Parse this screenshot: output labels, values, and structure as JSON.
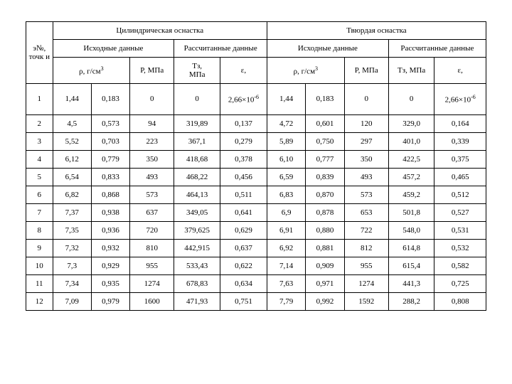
{
  "header": {
    "col0": "э№, точк и",
    "cyl": "Цилиндрическая оснастка",
    "hard": "Твюрдая оснастка",
    "src": "Исходные данные",
    "calc": "Рассчитанные данные",
    "rho": "ρ, г/см",
    "rho_sup": "3",
    "p": "P, МПа",
    "tz_short": "Tз, МПа",
    "tz_long1": "Tз,",
    "tz_long2": "МПа",
    "eps": "ε,"
  },
  "rows": [
    {
      "n": "1",
      "a1": "1,44",
      "a2": "0,183",
      "a3": "0",
      "a4": "0",
      "a5": "2,66×10",
      "a5_sup": "-6",
      "b1": "1,44",
      "b2": "0,183",
      "b3": "0",
      "b4": "0",
      "b5": "2,66×10",
      "b5_sup": "-6"
    },
    {
      "n": "2",
      "a1": "4,5",
      "a2": "0,573",
      "a3": "94",
      "a4": "319,89",
      "a5": "0,137",
      "b1": "4,72",
      "b2": "0,601",
      "b3": "120",
      "b4": "329,0",
      "b5": "0,164"
    },
    {
      "n": "3",
      "a1": "5,52",
      "a2": "0,703",
      "a3": "223",
      "a4": "367,1",
      "a5": "0,279",
      "b1": "5,89",
      "b2": "0,750",
      "b3": "297",
      "b4": "401,0",
      "b5": "0,339"
    },
    {
      "n": "4",
      "a1": "6,12",
      "a2": "0,779",
      "a3": "350",
      "a4": "418,68",
      "a5": "0,378",
      "b1": "6,10",
      "b2": "0,777",
      "b3": "350",
      "b4": "422,5",
      "b5": "0,375"
    },
    {
      "n": "5",
      "a1": "6,54",
      "a2": "0,833",
      "a3": "493",
      "a4": "468,22",
      "a5": "0,456",
      "b1": "6,59",
      "b2": "0,839",
      "b3": "493",
      "b4": "457,2",
      "b5": "0,465"
    },
    {
      "n": "6",
      "a1": "6,82",
      "a2": "0,868",
      "a3": "573",
      "a4": "464,13",
      "a5": "0,511",
      "b1": "6,83",
      "b2": "0,870",
      "b3": "573",
      "b4": "459,2",
      "b5": "0,512"
    },
    {
      "n": "7",
      "a1": "7,37",
      "a2": "0,938",
      "a3": "637",
      "a4": "349,05",
      "a5": "0,641",
      "b1": "6,9",
      "b2": "0,878",
      "b3": "653",
      "b4": "501,8",
      "b5": "0,527"
    },
    {
      "n": "8",
      "a1": "7,35",
      "a2": "0,936",
      "a3": "720",
      "a4": "379,625",
      "a5": "0,629",
      "b1": "6,91",
      "b2": "0,880",
      "b3": "722",
      "b4": "548,0",
      "b5": "0,531"
    },
    {
      "n": "9",
      "a1": "7,32",
      "a2": "0,932",
      "a3": "810",
      "a4": "442,915",
      "a5": "0,637",
      "b1": "6,92",
      "b2": "0,881",
      "b3": "812",
      "b4": "614,8",
      "b5": "0,532"
    },
    {
      "n": "10",
      "a1": "7,3",
      "a2": "0,929",
      "a3": "955",
      "a4": "533,43",
      "a5": "0,622",
      "b1": "7,14",
      "b2": "0,909",
      "b3": "955",
      "b4": "615,4",
      "b5": "0,582"
    },
    {
      "n": "11",
      "a1": "7,34",
      "a2": "0,935",
      "a3": "1274",
      "a4": "678,83",
      "a5": "0,634",
      "b1": "7,63",
      "b2": "0,971",
      "b3": "1274",
      "b4": "441,3",
      "b5": "0,725"
    },
    {
      "n": "12",
      "a1": "7,09",
      "a2": "0,979",
      "a3": "1600",
      "a4": "471,93",
      "a5": "0,751",
      "b1": "7,79",
      "b2": "0,992",
      "b3": "1592",
      "b4": "288,2",
      "b5": "0,808"
    }
  ],
  "style": {
    "font_family": "Times New Roman",
    "font_size_pt": 11,
    "border_color": "#000000",
    "background": "#ffffff",
    "text_color": "#000000"
  }
}
